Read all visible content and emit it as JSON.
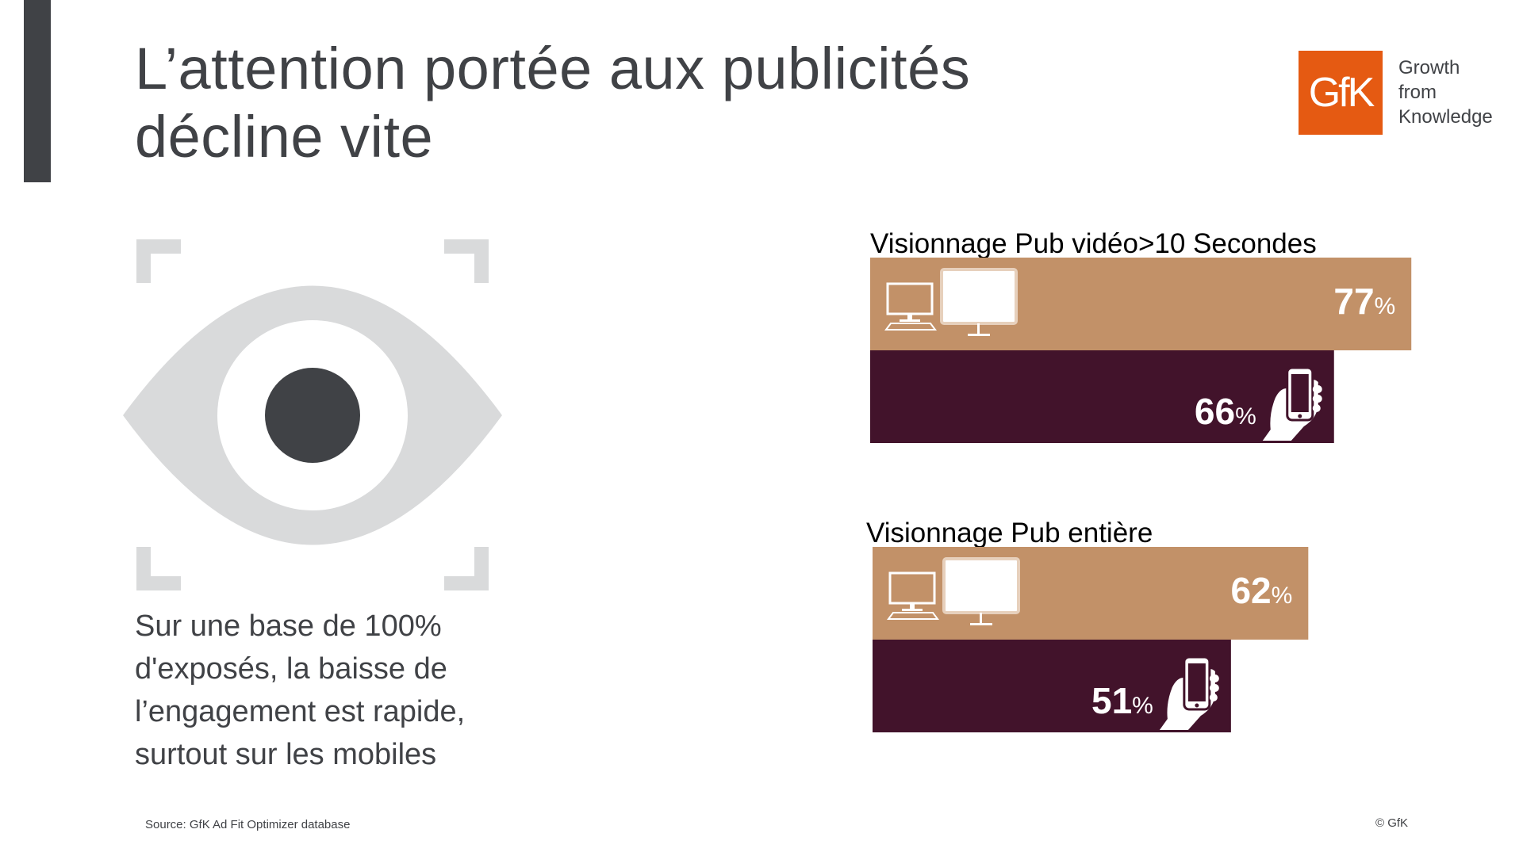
{
  "slide": {
    "title_lines": [
      "L’attention portée aux publicités",
      "décline vite"
    ],
    "description_lines": [
      "Sur une base de 100%",
      "d'exposés, la baisse de",
      "l’engagement est rapide,",
      "surtout sur les mobiles"
    ],
    "source": "Source: GfK Ad Fit Optimizer database",
    "copyright": "© GfK"
  },
  "logo": {
    "mark": "GfK",
    "tagline_lines": [
      "Growth",
      "from",
      "Knowledge"
    ],
    "color": "#E55A12"
  },
  "icons": {
    "illustration": "eye-icon",
    "desktop": "desktop-computer-icon",
    "mobile": "hand-holding-phone-icon"
  },
  "colors": {
    "desktop_bar": "#C29168",
    "mobile_bar": "#42132B",
    "text": "#404246",
    "eye": "#D9DADB"
  },
  "chart_data": {
    "type": "bar",
    "orientation": "horizontal",
    "unit": "%",
    "xlim": [
      0,
      100
    ],
    "series_names": [
      "Desktop",
      "Mobile"
    ],
    "groups": [
      {
        "title": "Visionnage Pub vidéo>10 Secondes",
        "bars": [
          {
            "device": "Desktop",
            "value": 77
          },
          {
            "device": "Mobile",
            "value": 66
          }
        ]
      },
      {
        "title": "Visionnage Pub entière",
        "bars": [
          {
            "device": "Desktop",
            "value": 62
          },
          {
            "device": "Mobile",
            "value": 51
          }
        ]
      }
    ]
  }
}
